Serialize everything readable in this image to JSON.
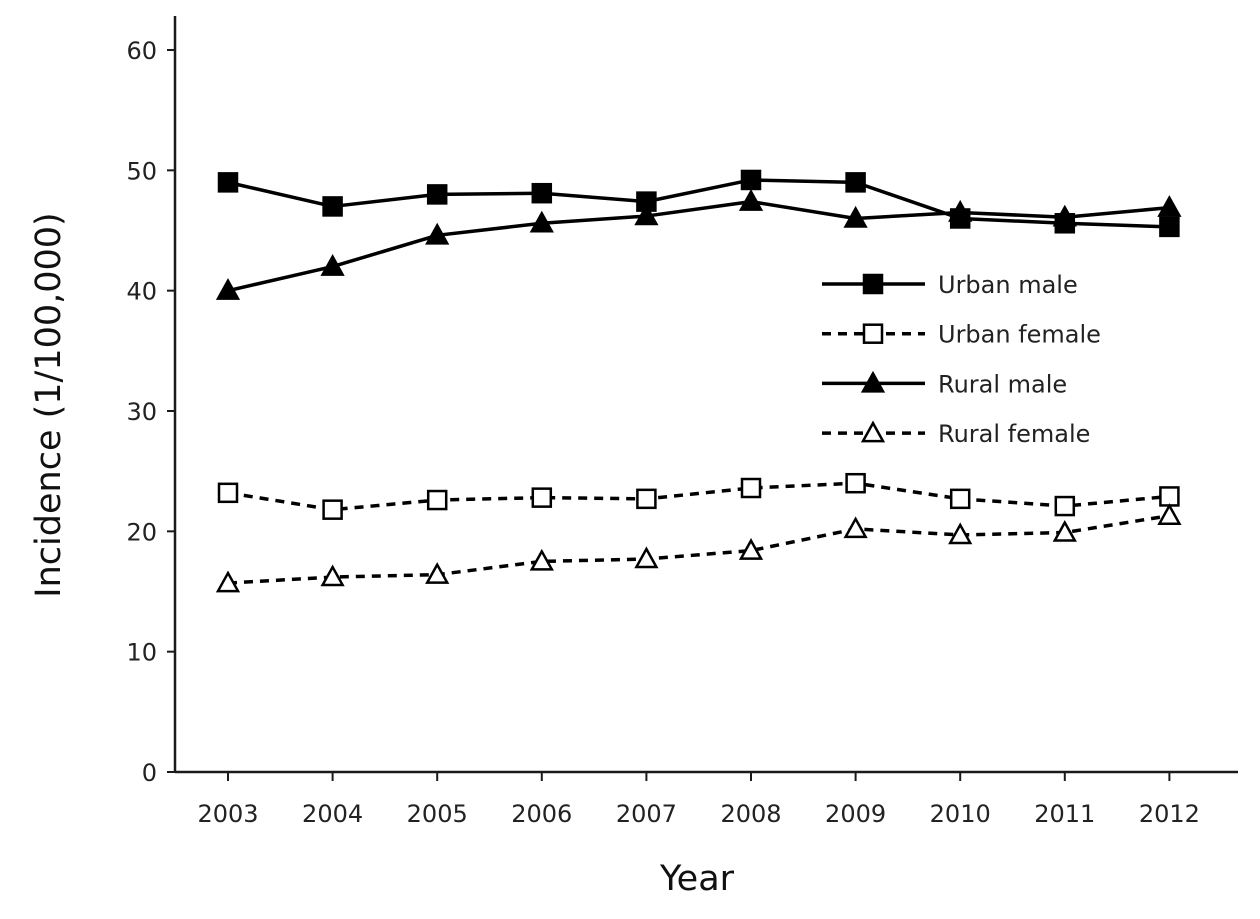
{
  "chart_data": {
    "type": "line",
    "title": "",
    "xlabel": "Year",
    "ylabel": "Incidence (1/100,000)",
    "categories": [
      "2003",
      "2004",
      "2005",
      "2006",
      "2007",
      "2008",
      "2009",
      "2010",
      "2011",
      "2012"
    ],
    "ylim": [
      0,
      60
    ],
    "yticks": [
      0,
      10,
      20,
      30,
      40,
      50,
      60
    ],
    "grid": false,
    "legend_position": "center-right",
    "series": [
      {
        "name": "Urban male",
        "marker": "square-filled",
        "line": "solid",
        "values": [
          49.0,
          47.0,
          48.0,
          48.1,
          47.4,
          49.2,
          49.0,
          46.0,
          45.6,
          45.3
        ]
      },
      {
        "name": "Urban female",
        "marker": "square-open",
        "line": "dashed",
        "values": [
          23.2,
          21.8,
          22.6,
          22.8,
          22.7,
          23.6,
          24.0,
          22.7,
          22.1,
          22.9
        ]
      },
      {
        "name": "Rural male",
        "marker": "triangle-filled",
        "line": "solid",
        "values": [
          40.0,
          42.0,
          44.6,
          45.6,
          46.2,
          47.4,
          46.0,
          46.5,
          46.1,
          46.9
        ]
      },
      {
        "name": "Rural female",
        "marker": "triangle-open",
        "line": "dashed",
        "values": [
          15.7,
          16.2,
          16.4,
          17.5,
          17.7,
          18.4,
          20.2,
          19.7,
          19.9,
          21.3
        ]
      }
    ],
    "colors": {
      "line": "#000000",
      "axis": "#1a1a1a",
      "background": "#ffffff"
    }
  }
}
